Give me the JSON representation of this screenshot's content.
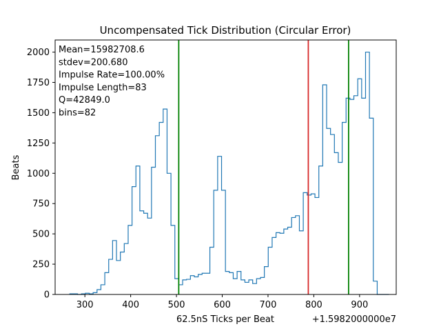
{
  "chart_data": {
    "type": "histogram",
    "title": "Uncompensated Tick Distribution (Circular Error)",
    "xlabel": "62.5nS Ticks per Beat",
    "ylabel": "Beats",
    "x_offset_label": "+1.5982000000e7",
    "xlim": [
      235,
      980
    ],
    "ylim": [
      0,
      2100
    ],
    "x_ticks": [
      300,
      400,
      500,
      600,
      700,
      800,
      900
    ],
    "y_ticks": [
      0,
      250,
      500,
      750,
      1000,
      1250,
      1500,
      1750,
      2000
    ],
    "x_tick_labels": [
      "300",
      "400",
      "500",
      "600",
      "700",
      "800",
      "900"
    ],
    "y_tick_labels": [
      "0",
      "250",
      "500",
      "750",
      "1000",
      "1250",
      "1500",
      "1750",
      "2000"
    ],
    "grid": false,
    "stats_text": [
      "Mean=15982708.6",
      "stdev=200.680",
      "Impulse Rate=100.00%",
      "Impulse Length=83",
      "Q=42849.0",
      "bins=82"
    ],
    "bin_edges": [
      267.0,
      275.5,
      284.0,
      292.5,
      301.0,
      309.5,
      318.0,
      326.5,
      335.0,
      343.5,
      352.0,
      360.5,
      369.0,
      377.5,
      386.0,
      394.5,
      403.0,
      411.5,
      420.0,
      428.5,
      437.0,
      445.5,
      454.0,
      462.5,
      471.0,
      479.5,
      488.0,
      496.5,
      505.0,
      513.5,
      522.0,
      530.5,
      539.0,
      547.5,
      556.0,
      564.5,
      573.0,
      581.5,
      590.0,
      598.5,
      607.0,
      615.5,
      624.0,
      632.5,
      641.0,
      649.5,
      658.0,
      666.5,
      675.0,
      683.5,
      692.0,
      700.5,
      709.0,
      717.5,
      726.0,
      734.5,
      743.0,
      751.5,
      760.0,
      768.5,
      777.0,
      785.5,
      794.0,
      802.5,
      811.0,
      819.5,
      828.0,
      836.5,
      845.0,
      853.5,
      862.0,
      870.5,
      879.0,
      887.5,
      896.0,
      904.5,
      913.0,
      921.5,
      930.0,
      938.5,
      947.0,
      955.5,
      964.0
    ],
    "counts": [
      5,
      5,
      0,
      5,
      10,
      5,
      15,
      40,
      80,
      180,
      290,
      445,
      280,
      350,
      420,
      570,
      890,
      1060,
      690,
      670,
      630,
      1050,
      1310,
      1420,
      1530,
      1000,
      570,
      130,
      80,
      120,
      125,
      155,
      145,
      165,
      175,
      175,
      390,
      860,
      1140,
      860,
      190,
      180,
      130,
      190,
      120,
      100,
      120,
      90,
      130,
      140,
      230,
      390,
      470,
      510,
      505,
      540,
      555,
      635,
      650,
      525,
      840,
      820,
      830,
      800,
      1060,
      1730,
      1370,
      1320,
      1170,
      1090,
      1420,
      1620,
      1610,
      1640,
      1780,
      1620,
      2000,
      1455,
      110,
      0,
      0,
      0
    ],
    "series": [
      {
        "name": "",
        "color": "#1f77b4",
        "kind": "step-histogram"
      }
    ],
    "vertical_lines": [
      {
        "x": 505,
        "color": "#008000"
      },
      {
        "x": 788,
        "color": "#d62728"
      },
      {
        "x": 876,
        "color": "#008000"
      }
    ]
  }
}
